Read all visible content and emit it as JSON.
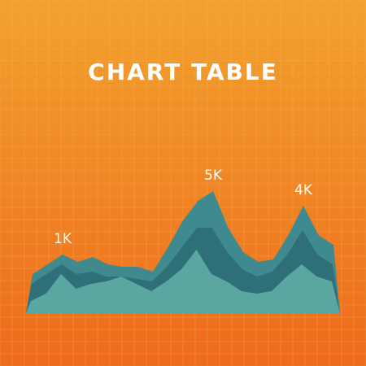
{
  "chart_data": {
    "type": "area",
    "title": "CHART TABLE",
    "background": {
      "top": "#f2a22e",
      "bottom": "#ee6a1c",
      "grid_line": "#f7b25a",
      "grid": true
    },
    "colors": {
      "back": "#3f8a8f",
      "middle": "#2f6f78",
      "front": "#5aa7a2",
      "base_shadow": "#2c5e6a"
    },
    "x": [
      0,
      1,
      2,
      3,
      4,
      5,
      6,
      7,
      8,
      9,
      10,
      11,
      12,
      13,
      14,
      15,
      16,
      17,
      18,
      19,
      20
    ],
    "ylim": [
      0,
      6
    ],
    "series": [
      {
        "values": [
          1.6,
          2.0,
          2.4,
          2.1,
          2.3,
          2.0,
          1.9,
          1.9,
          1.7,
          2.7,
          3.8,
          4.6,
          5.0,
          3.5,
          2.5,
          2.1,
          2.2,
          3.2,
          4.4,
          3.2,
          2.8
        ]
      },
      {
        "values": [
          1.2,
          1.6,
          2.0,
          1.6,
          1.7,
          1.5,
          1.5,
          1.4,
          1.3,
          1.9,
          2.7,
          3.5,
          3.5,
          2.5,
          1.8,
          1.5,
          1.7,
          2.4,
          3.4,
          2.4,
          2.0
        ]
      },
      {
        "values": [
          0.5,
          0.8,
          1.6,
          1.0,
          1.2,
          1.3,
          1.5,
          1.2,
          0.9,
          1.3,
          1.8,
          2.6,
          1.6,
          1.3,
          0.9,
          0.8,
          0.9,
          1.5,
          2.0,
          1.5,
          1.3
        ]
      }
    ],
    "annotations": [
      {
        "text": "1K",
        "x": 2,
        "y": 2.4
      },
      {
        "text": "5K",
        "x": 12,
        "y": 5.0
      },
      {
        "text": "4K",
        "x": 18,
        "y": 4.4
      }
    ]
  }
}
